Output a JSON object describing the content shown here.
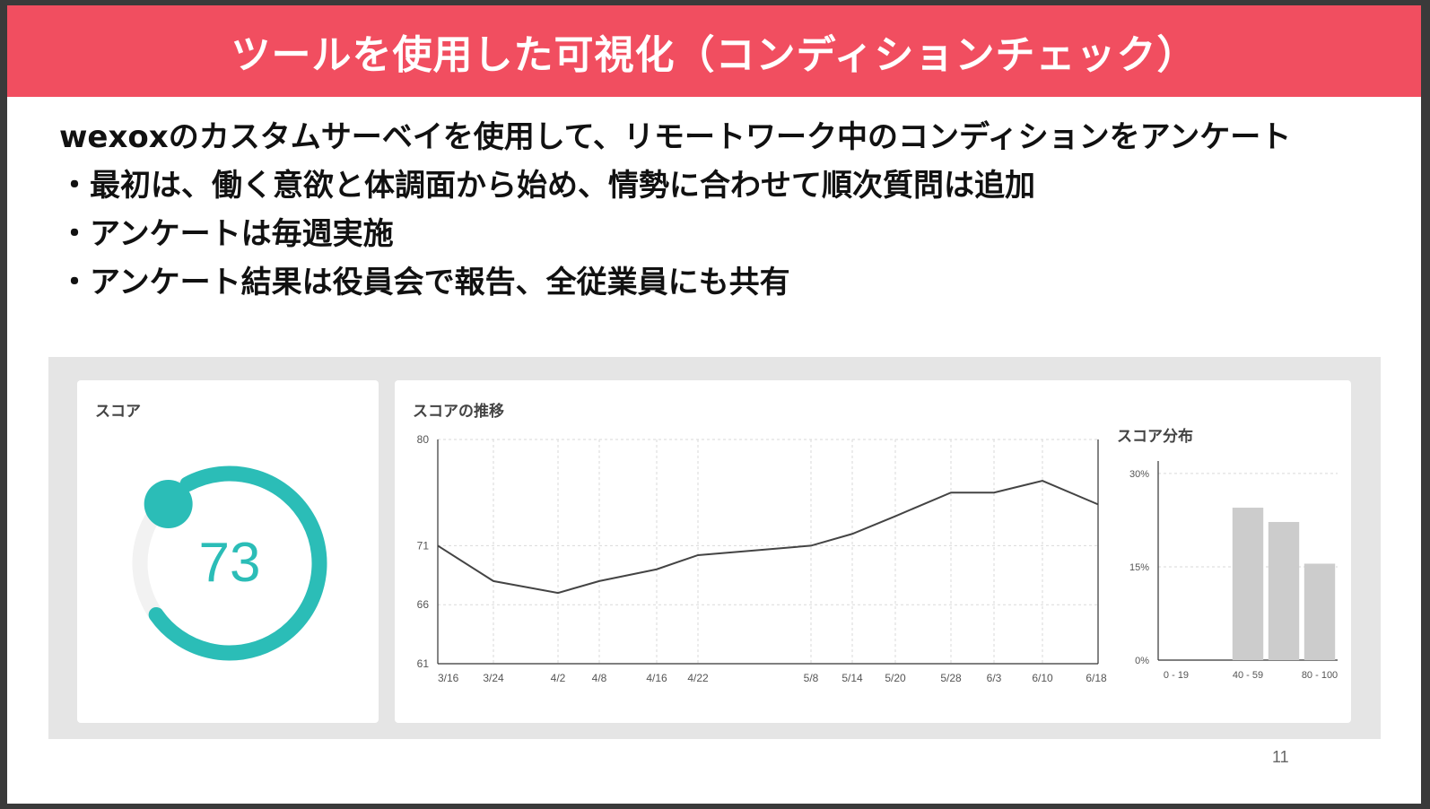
{
  "slide": {
    "title": "ツールを使用した可視化（コンディションチェック）",
    "bullets": [
      "wexoxのカスタムサーベイを使用して、リモートワーク中のコンディションをアンケート",
      "・最初は、働く意欲と体調面から始め、情勢に合わせて順次質問は追加",
      "・アンケートは毎週実施",
      "・アンケート結果は役員会で報告、全従業員にも共有"
    ],
    "page_number": "11"
  },
  "dashboard": {
    "score_card": {
      "title": "スコア",
      "value": "73",
      "gauge_fraction": 0.73,
      "accent_color": "#2bbdb7",
      "track_color": "#f2f2f2"
    },
    "trend_card": {
      "title": "スコアの推移"
    },
    "distribution_card": {
      "title": "スコア分布"
    }
  },
  "chart_data": [
    {
      "type": "line",
      "title": "スコアの推移",
      "x": [
        "3/16",
        "3/24",
        "4/2",
        "4/8",
        "4/16",
        "4/22",
        "5/8",
        "5/14",
        "5/20",
        "5/28",
        "6/3",
        "6/10",
        "6/18"
      ],
      "y_ticks": [
        "80",
        "71",
        "66",
        "61"
      ],
      "ylim": [
        61,
        80
      ],
      "series": [
        {
          "values": [
            71,
            68,
            67,
            68,
            69,
            70.2,
            71,
            72,
            73.5,
            75.5,
            75.5,
            76.5,
            74.5
          ],
          "color": "#444444"
        }
      ],
      "grid": true
    },
    {
      "type": "bar",
      "title": "スコア分布",
      "categories": [
        "0 - 19",
        "20 - 39",
        "40 - 59",
        "60 - 79",
        "80 - 100"
      ],
      "tick_labels": [
        "0 - 19",
        "40 - 59",
        "80 - 100"
      ],
      "y_ticks": [
        "30%",
        "15%",
        "0%"
      ],
      "values": [
        0,
        0,
        24.5,
        22.2,
        15.5
      ],
      "ylim": [
        0,
        32
      ],
      "color": "#cccccc"
    }
  ]
}
